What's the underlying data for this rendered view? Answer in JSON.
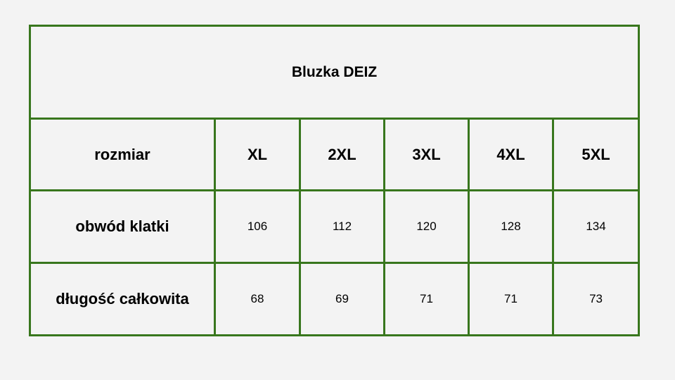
{
  "title": "Bluzka DEIZ",
  "border_color": "#38761d",
  "header": {
    "label": "rozmiar",
    "sizes": [
      "XL",
      "2XL",
      "3XL",
      "4XL",
      "5XL"
    ]
  },
  "rows": [
    {
      "label": "obwód klatki",
      "values": [
        "106",
        "112",
        "120",
        "128",
        "134"
      ]
    },
    {
      "label": "długość całkowita",
      "values": [
        "68",
        "69",
        "71",
        "71",
        "73"
      ]
    }
  ]
}
